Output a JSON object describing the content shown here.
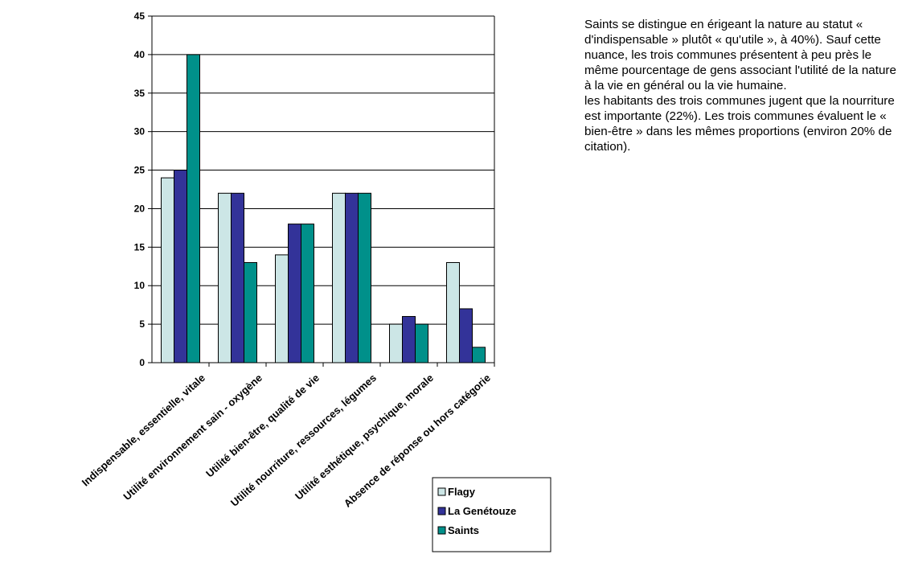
{
  "commentary": {
    "paragraph_1": "Saints se distingue en érigeant la nature au statut « d'indispensable » plutôt « qu'utile », à 40%). Sauf cette nuance, les trois communes présentent à peu près le même pourcentage de gens associant l'utilité de la nature à la vie en général ou la vie humaine.",
    "paragraph_2": "les habitants des trois communes jugent que la nourriture est importante (22%). Les trois communes évaluent le « bien-être » dans les mêmes proportions (environ 20% de citation)."
  },
  "chart_data": {
    "type": "bar",
    "title": "",
    "xlabel": "",
    "ylabel": "",
    "ylim": [
      0,
      45
    ],
    "yticks": [
      0,
      5,
      10,
      15,
      20,
      25,
      30,
      35,
      40,
      45
    ],
    "grid": true,
    "legend_position": "bottom-right",
    "categories": [
      "Indispensable, essentielle, vitale",
      "Utilité environnement sain - oxygène",
      "Utilité bien-être, qualité de vie",
      "Utilité nourriture, ressources, légumes",
      "Utilité esthétique, psychique, morale",
      "Absence de réponse ou hors catégorie"
    ],
    "series": [
      {
        "name": "Flagy",
        "color": "#cce6e6",
        "values": [
          24,
          22,
          14,
          22,
          5,
          13
        ]
      },
      {
        "name": "La Genétouze",
        "color": "#333399",
        "values": [
          25,
          22,
          18,
          22,
          6,
          7
        ]
      },
      {
        "name": "Saints",
        "color": "#00908a",
        "values": [
          40,
          13,
          18,
          22,
          5,
          2
        ]
      }
    ]
  }
}
